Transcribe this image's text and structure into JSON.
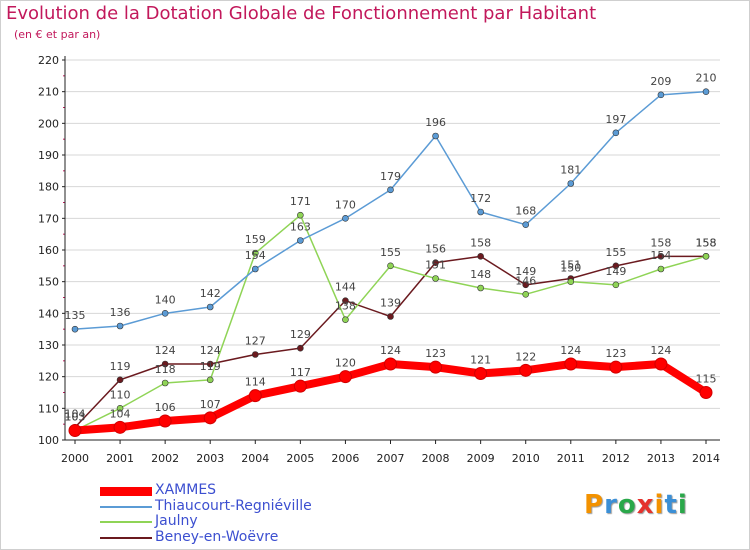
{
  "title": "Evolution de la Dotation Globale de Fonctionnement par Habitant",
  "subtitle": "(en € et par an)",
  "logo_text": "Proxiti",
  "colors": {
    "title": "#c2185b",
    "axis": "#222222",
    "grid": "#d7d7d7",
    "label": "#444444",
    "legend_text": "#3c4fd0",
    "logo": [
      "#f39200",
      "#3b8fd6",
      "#2aa84a",
      "#e5322d",
      "#f39200",
      "#3b8fd6",
      "#2aa84a"
    ]
  },
  "chart_data": {
    "type": "line",
    "x": [
      2000,
      2001,
      2002,
      2003,
      2004,
      2005,
      2006,
      2007,
      2008,
      2009,
      2010,
      2011,
      2012,
      2013,
      2014
    ],
    "ylim": [
      100,
      220
    ],
    "yticks": [
      100,
      110,
      120,
      130,
      140,
      150,
      160,
      170,
      180,
      190,
      200,
      210,
      220
    ],
    "grid": "horizontal",
    "legend_position": "bottom-left",
    "series": [
      {
        "name": "Beney-en-Woëvre",
        "color": "#6b1a1f",
        "values": [
          104,
          119,
          124,
          124,
          127,
          129,
          144,
          139,
          156,
          158,
          149,
          151,
          155,
          158,
          158
        ],
        "labels": [
          "104",
          "119",
          "124",
          "124",
          "127",
          "129",
          "144",
          "139",
          "156",
          "158",
          "149",
          "151",
          "155",
          "158",
          "158"
        ]
      },
      {
        "name": "Jaulny",
        "color": "#8fd456",
        "values": [
          103,
          110,
          118,
          119,
          159,
          171,
          138,
          155,
          151,
          148,
          146,
          150,
          149,
          154,
          158
        ],
        "labels": [
          "103",
          "110",
          "118",
          "119",
          "159",
          "171",
          "138",
          "155",
          "151",
          "148",
          "146",
          "150",
          "149",
          "154",
          "158"
        ]
      },
      {
        "name": "Thiaucourt-Regniéville",
        "color": "#5b9bd5",
        "values": [
          135,
          136,
          140,
          142,
          154,
          163,
          170,
          179,
          196,
          172,
          168,
          181,
          197,
          209,
          210
        ],
        "labels": [
          "135",
          "136",
          "140",
          "142",
          "154",
          "163",
          "170",
          "179",
          "196",
          "172",
          "168",
          "181",
          "197",
          "209",
          "210"
        ]
      },
      {
        "name": "XAMMES",
        "color": "#ff0000",
        "values": [
          103,
          104,
          106,
          107,
          114,
          117,
          120,
          124,
          123,
          121,
          122,
          124,
          123,
          124,
          115
        ],
        "labels": [
          "103",
          "104",
          "106",
          "107",
          "114",
          "117",
          "120",
          "124",
          "123",
          "121",
          "122",
          "124",
          "123",
          "124",
          "115"
        ]
      }
    ]
  },
  "legend": [
    {
      "label": "XAMMES",
      "color": "#ff0000",
      "thickness": 9
    },
    {
      "label": "Thiaucourt-Regniéville",
      "color": "#5b9bd5",
      "thickness": 2
    },
    {
      "label": "Jaulny",
      "color": "#8fd456",
      "thickness": 2
    },
    {
      "label": "Beney-en-Woëvre",
      "color": "#6b1a1f",
      "thickness": 2
    }
  ]
}
